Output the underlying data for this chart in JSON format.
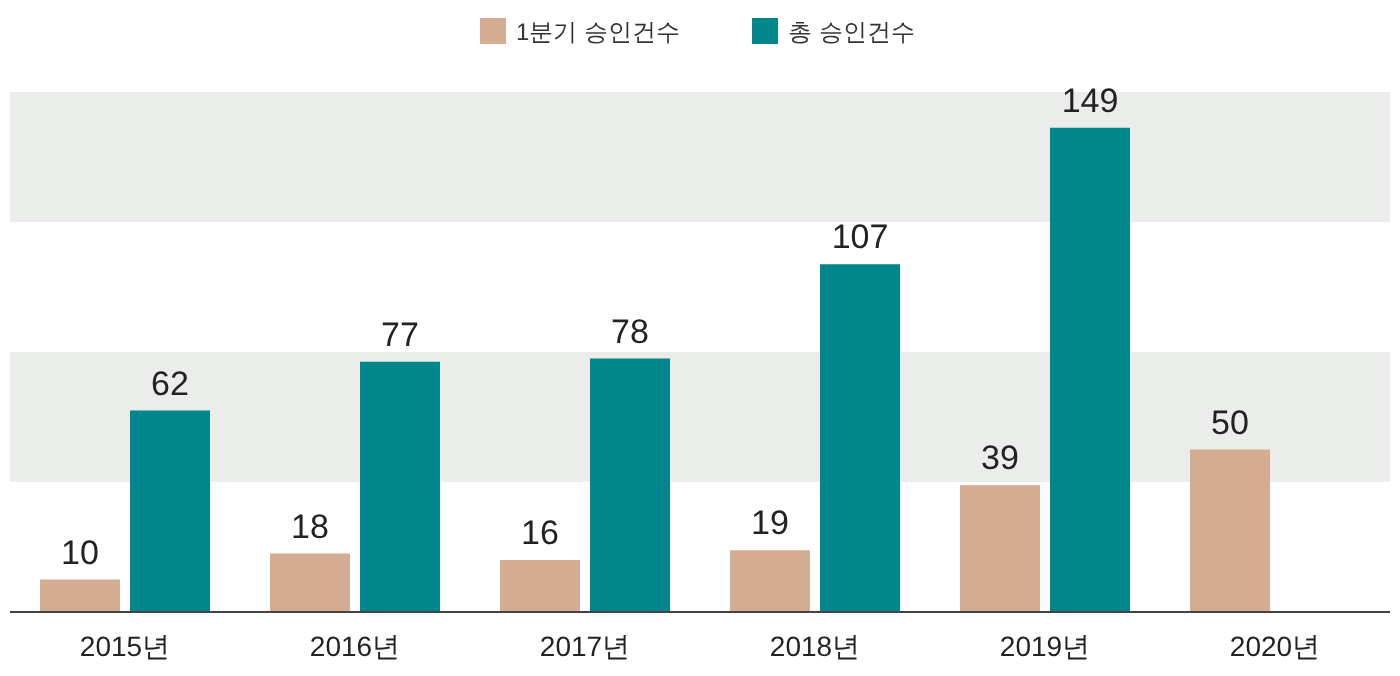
{
  "chart_data": {
    "type": "bar",
    "categories": [
      "2015년",
      "2016년",
      "2017년",
      "2018년",
      "2019년",
      "2020년"
    ],
    "series": [
      {
        "name": "1분기 승인건수",
        "color": "#d4ac92",
        "values": [
          10,
          18,
          16,
          19,
          39,
          50
        ]
      },
      {
        "name": "총 승인건수",
        "color": "#00868b",
        "values": [
          62,
          77,
          78,
          107,
          149,
          null
        ]
      }
    ],
    "ylim": [
      0,
      160
    ],
    "bands": [
      {
        "axis": "y",
        "from": 40,
        "to": 80,
        "color": "#ebedeb"
      },
      {
        "axis": "y",
        "from": 120,
        "to": 160,
        "color": "#ebedeb"
      }
    ],
    "data_labels": true,
    "legend": "top"
  }
}
